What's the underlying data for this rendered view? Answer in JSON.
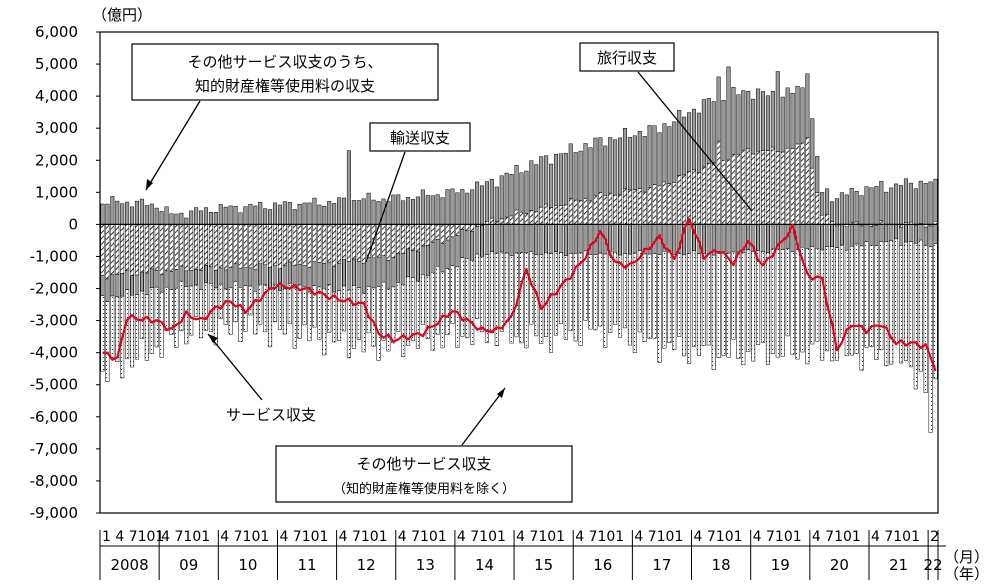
{
  "chart_data": {
    "type": "bar",
    "unit_label": "（億円）",
    "x_unit_month": "（月）",
    "x_unit_year": "（年）",
    "ylim": [
      -9000,
      6000
    ],
    "yticks": [
      "6,000",
      "5,000",
      "4,000",
      "3,000",
      "2,000",
      "1,000",
      "0",
      "-1,000",
      "-2,000",
      "-3,000",
      "-4,000",
      "-5,000",
      "-6,000",
      "-7,000",
      "-8,000",
      "-9,000"
    ],
    "ytick_values": [
      6000,
      5000,
      4000,
      3000,
      2000,
      1000,
      0,
      -1000,
      -2000,
      -3000,
      -4000,
      -5000,
      -6000,
      -7000,
      -8000,
      -9000
    ],
    "years": [
      "2008",
      "09",
      "10",
      "11",
      "12",
      "13",
      "14",
      "15",
      "16",
      "17",
      "18",
      "19",
      "20",
      "21",
      "22"
    ],
    "month_tick_row": [
      "1 4 7101",
      "4 7101",
      "4 7101",
      "4 7101",
      "4 7101",
      "4 7101",
      "4 7101",
      "4 7101",
      "4 7101",
      "4 7101",
      "4 7101",
      "4 7101",
      "4 7101",
      "4 7101",
      "2"
    ],
    "start": "2008-01",
    "end": "2022-02",
    "annotations": {
      "ip": [
        "その他サービス収支のうち、",
        "知的財産権等使用料の収支"
      ],
      "travel": "旅行収支",
      "transport": "輸送収支",
      "services": "サービス収支",
      "other": [
        "その他サービス収支",
        "（知的財産権等使用料を除く）"
      ]
    },
    "series": [
      {
        "key": "ip",
        "style": "solid-gray",
        "anchors": [
          [
            "2008-01",
            700
          ],
          [
            "2008-06",
            700
          ],
          [
            "2008-12",
            600
          ],
          [
            "2009-03",
            300
          ],
          [
            "2009-12",
            500
          ],
          [
            "2010-12",
            600
          ],
          [
            "2011-12",
            700
          ],
          [
            "2012-06",
            800
          ],
          [
            "2012-12",
            800
          ],
          [
            "2013-12",
            1000
          ],
          [
            "2014-06",
            1200
          ],
          [
            "2014-12",
            1300
          ],
          [
            "2015-06",
            1500
          ],
          [
            "2016-06",
            1700
          ],
          [
            "2017-06",
            1800
          ],
          [
            "2018-06",
            2000
          ],
          [
            "2019-06",
            1700
          ],
          [
            "2019-12",
            1800
          ],
          [
            "2020-03",
            700
          ],
          [
            "2020-12",
            1100
          ],
          [
            "2021-06",
            1200
          ],
          [
            "2021-12",
            1300
          ],
          [
            "2022-02",
            1200
          ]
        ],
        "highlights": [
          [
            "2012-03",
            2300
          ],
          [
            "2018-08",
            2900
          ],
          [
            "2019-06",
            2500
          ],
          [
            "2019-12",
            2000
          ]
        ]
      },
      {
        "key": "travel",
        "style": "hatched",
        "anchors": [
          [
            "2008-01",
            -1600
          ],
          [
            "2009-06",
            -1400
          ],
          [
            "2010-12",
            -1300
          ],
          [
            "2011-12",
            -1200
          ],
          [
            "2012-12",
            -1000
          ],
          [
            "2013-12",
            -400
          ],
          [
            "2014-06",
            0
          ],
          [
            "2014-12",
            300
          ],
          [
            "2015-06",
            500
          ],
          [
            "2016-06",
            900
          ],
          [
            "2017-06",
            1200
          ],
          [
            "2018-06",
            2000
          ],
          [
            "2018-12",
            2300
          ],
          [
            "2019-06",
            2300
          ],
          [
            "2019-12",
            2500
          ],
          [
            "2020-03",
            300
          ],
          [
            "2020-06",
            0
          ],
          [
            "2021-06",
            0
          ],
          [
            "2022-02",
            0
          ]
        ],
        "highlights": [
          [
            "2018-06",
            2600
          ],
          [
            "2019-12",
            2700
          ]
        ]
      },
      {
        "key": "transport",
        "style": "vertical-lines",
        "anchors": [
          [
            "2008-01",
            -700
          ],
          [
            "2009-06",
            -500
          ],
          [
            "2010-06",
            -600
          ],
          [
            "2011-06",
            -700
          ],
          [
            "2012-06",
            -900
          ],
          [
            "2013-06",
            -900
          ],
          [
            "2014-06",
            -900
          ],
          [
            "2015-06",
            -900
          ],
          [
            "2016-06",
            -900
          ],
          [
            "2017-06",
            -900
          ],
          [
            "2018-06",
            -900
          ],
          [
            "2019-06",
            -800
          ],
          [
            "2020-06",
            -700
          ],
          [
            "2021-06",
            -500
          ],
          [
            "2022-02",
            -600
          ]
        ]
      },
      {
        "key": "other",
        "style": "dotted-white",
        "anchors": [
          [
            "2008-01",
            -2400
          ],
          [
            "2009-06",
            -1500
          ],
          [
            "2010-06",
            -1300
          ],
          [
            "2011-06",
            -1500
          ],
          [
            "2012-06",
            -1800
          ],
          [
            "2013-06",
            -2000
          ],
          [
            "2014-06",
            -2500
          ],
          [
            "2015-06",
            -2700
          ],
          [
            "2016-06",
            -2400
          ],
          [
            "2017-06",
            -2900
          ],
          [
            "2018-06",
            -3200
          ],
          [
            "2019-06",
            -3200
          ],
          [
            "2020-06",
            -3300
          ],
          [
            "2021-06",
            -3600
          ],
          [
            "2022-02",
            -4500
          ]
        ],
        "highlights": [
          [
            "2022-01",
            -5800
          ],
          [
            "2021-12",
            -4600
          ]
        ]
      },
      {
        "key": "services",
        "style": "red-line",
        "anchors": [
          [
            "2008-01",
            -4000
          ],
          [
            "2008-04",
            -4200
          ],
          [
            "2008-06",
            -2900
          ],
          [
            "2008-12",
            -3000
          ],
          [
            "2009-03",
            -3300
          ],
          [
            "2009-06",
            -2800
          ],
          [
            "2009-09",
            -3000
          ],
          [
            "2009-12",
            -2600
          ],
          [
            "2010-03",
            -2400
          ],
          [
            "2010-06",
            -2700
          ],
          [
            "2010-12",
            -1900
          ],
          [
            "2011-06",
            -2000
          ],
          [
            "2011-12",
            -2300
          ],
          [
            "2012-06",
            -2500
          ],
          [
            "2012-09",
            -3400
          ],
          [
            "2012-12",
            -3600
          ],
          [
            "2013-06",
            -3400
          ],
          [
            "2013-12",
            -2700
          ],
          [
            "2014-06",
            -3300
          ],
          [
            "2014-09",
            -3300
          ],
          [
            "2014-12",
            -2900
          ],
          [
            "2015-03",
            -1400
          ],
          [
            "2015-06",
            -2600
          ],
          [
            "2015-12",
            -1600
          ],
          [
            "2016-03",
            -1000
          ],
          [
            "2016-06",
            -200
          ],
          [
            "2016-09",
            -1200
          ],
          [
            "2016-12",
            -1300
          ],
          [
            "2017-06",
            -400
          ],
          [
            "2017-09",
            -1100
          ],
          [
            "2017-12",
            200
          ],
          [
            "2018-03",
            -1000
          ],
          [
            "2018-06",
            -800
          ],
          [
            "2018-09",
            -1200
          ],
          [
            "2018-12",
            -500
          ],
          [
            "2019-03",
            -1300
          ],
          [
            "2019-09",
            -100
          ],
          [
            "2019-12",
            -1600
          ],
          [
            "2020-03",
            -1700
          ],
          [
            "2020-06",
            -3900
          ],
          [
            "2020-09",
            -3100
          ],
          [
            "2020-12",
            -3300
          ],
          [
            "2021-03",
            -3100
          ],
          [
            "2021-06",
            -3700
          ],
          [
            "2021-09",
            -3700
          ],
          [
            "2021-12",
            -3800
          ],
          [
            "2022-02",
            -4500
          ]
        ]
      }
    ]
  }
}
